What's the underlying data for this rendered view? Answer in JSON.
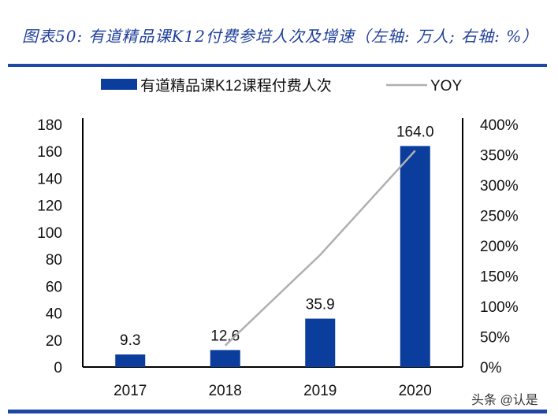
{
  "chart_data": {
    "type": "bar+line",
    "title": "图表50: 有道精品课K12付费参培人次及增速（左轴: 万人; 右轴: %）",
    "categories": [
      "2017",
      "2018",
      "2019",
      "2020"
    ],
    "series": [
      {
        "name": "有道精品课K12课程付费人次",
        "type": "bar",
        "axis": "left",
        "values": [
          9.3,
          12.6,
          35.9,
          164.0
        ],
        "labels": [
          "9.3",
          "12.6",
          "35.9",
          "164.0"
        ],
        "color": "#0b3d9c"
      },
      {
        "name": "YOY",
        "type": "line",
        "axis": "right",
        "values": [
          null,
          35.5,
          184.9,
          356.8
        ],
        "color": "#b0b0b0"
      }
    ],
    "yleft": {
      "lim": [
        0,
        180
      ],
      "ticks": [
        "0",
        "20",
        "40",
        "60",
        "80",
        "100",
        "120",
        "140",
        "160",
        "180"
      ]
    },
    "yright": {
      "lim": [
        0,
        400
      ],
      "ticks": [
        "0%",
        "50%",
        "100%",
        "150%",
        "200%",
        "250%",
        "300%",
        "350%",
        "400%"
      ]
    },
    "legend": "top",
    "grid": false
  },
  "watermark": "头条 @认是"
}
